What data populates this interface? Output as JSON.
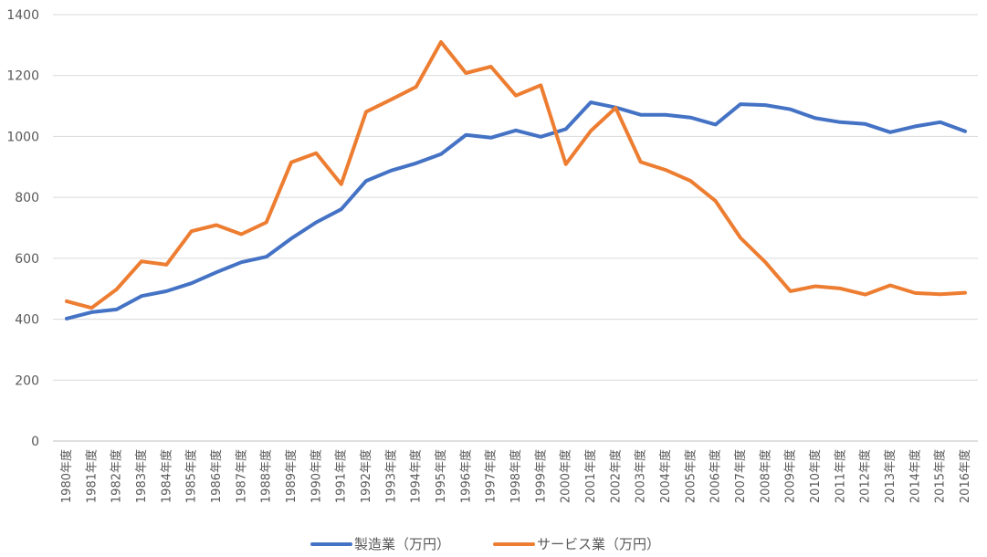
{
  "chart_data": {
    "type": "line",
    "title": "",
    "xlabel": "",
    "ylabel": "",
    "ylim": [
      0,
      1400
    ],
    "yticks": [
      0,
      200,
      400,
      600,
      800,
      1000,
      1200,
      1400
    ],
    "grid": "horizontal",
    "legend_position": "bottom",
    "categories": [
      "1980年度",
      "1981年度",
      "1982年度",
      "1983年度",
      "1984年度",
      "1985年度",
      "1986年度",
      "1987年度",
      "1988年度",
      "1989年度",
      "1990年度",
      "1991年度",
      "1992年度",
      "1993年度",
      "1994年度",
      "1995年度",
      "1996年度",
      "1997年度",
      "1998年度",
      "1999年度",
      "2000年度",
      "2001年度",
      "2002年度",
      "2003年度",
      "2004年度",
      "2005年度",
      "2006年度",
      "2007年度",
      "2008年度",
      "2009年度",
      "2010年度",
      "2011年度",
      "2012年度",
      "2013年度",
      "2014年度",
      "2015年度",
      "2016年度"
    ],
    "series": [
      {
        "name": "製造業（万円）",
        "color": "#4472C4",
        "values": [
          402,
          423,
          432,
          476,
          492,
          518,
          554,
          587,
          605,
          665,
          718,
          761,
          854,
          888,
          912,
          942,
          1005,
          996,
          1020,
          999,
          1024,
          1112,
          1095,
          1071,
          1071,
          1062,
          1039,
          1106,
          1103,
          1089,
          1060,
          1047,
          1041,
          1014,
          1033,
          1047,
          1017
        ]
      },
      {
        "name": "サービス業（万円）",
        "color": "#ED7D31",
        "values": [
          459,
          437,
          498,
          590,
          579,
          689,
          709,
          679,
          718,
          915,
          945,
          843,
          1081,
          1121,
          1163,
          1310,
          1208,
          1229,
          1134,
          1168,
          909,
          1018,
          1094,
          916,
          890,
          854,
          788,
          667,
          587,
          492,
          508,
          501,
          481,
          511,
          486,
          482,
          487
        ]
      }
    ]
  }
}
